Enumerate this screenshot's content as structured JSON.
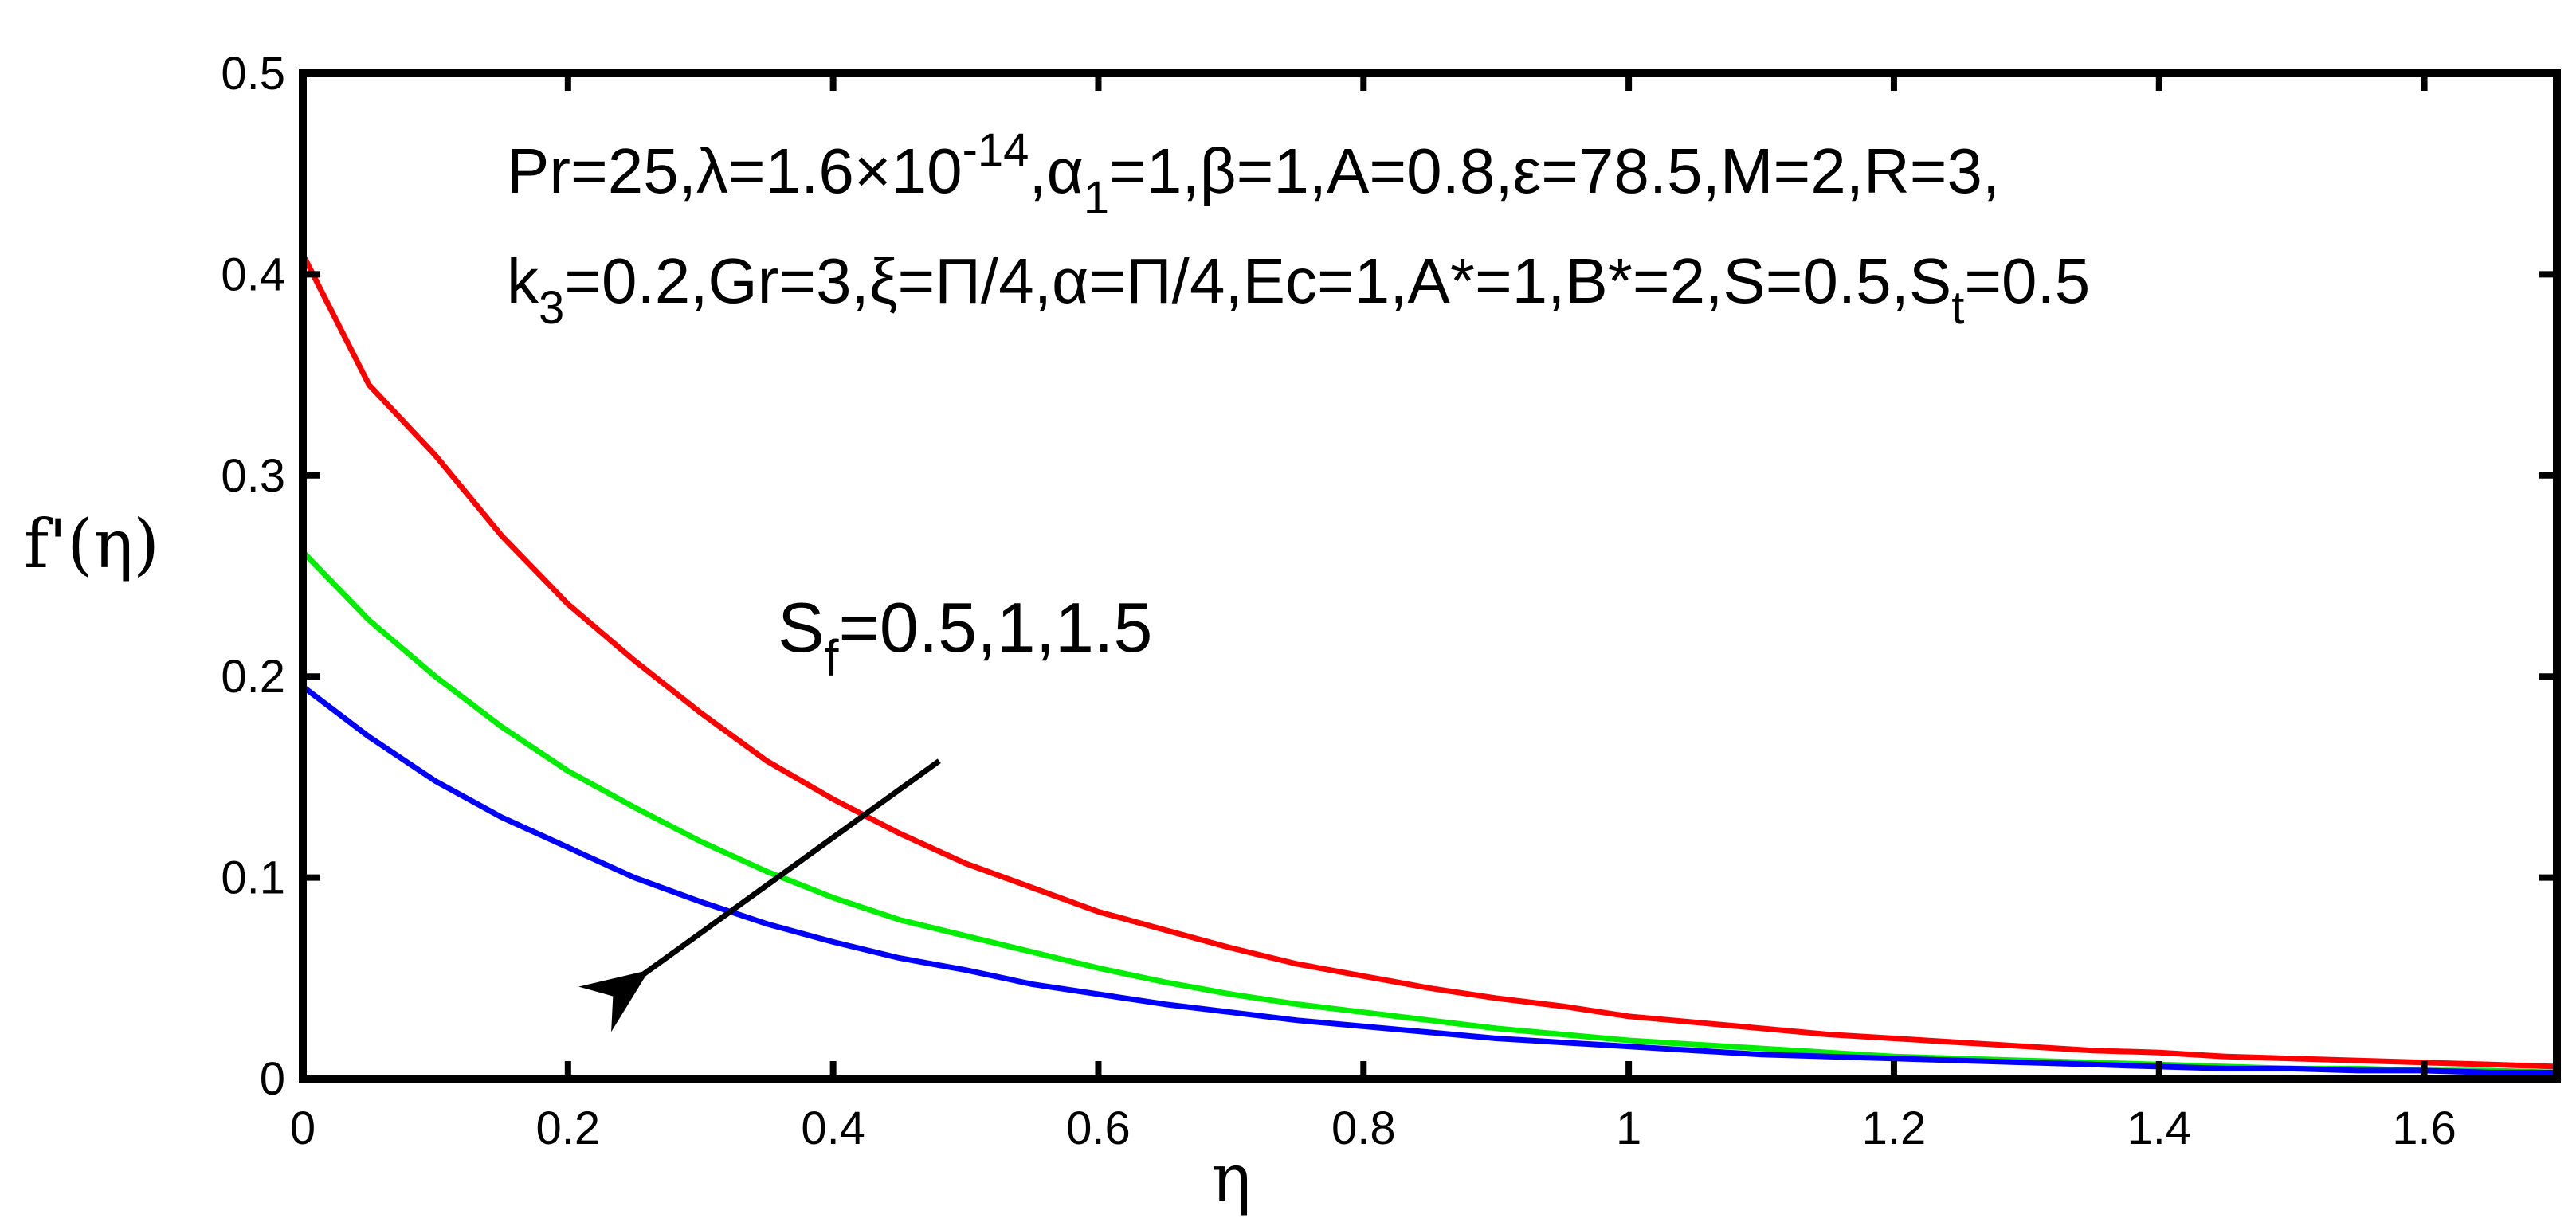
{
  "chart_data": {
    "type": "line",
    "xlabel": "η",
    "ylabel": "f'(η)",
    "xlim": [
      0,
      1.7
    ],
    "ylim": [
      0,
      0.5
    ],
    "xticks": [
      "0",
      "0.2",
      "0.4",
      "0.6",
      "0.8",
      "1",
      "1.2",
      "1.4",
      "1.6"
    ],
    "yticks": [
      "0",
      "0.1",
      "0.2",
      "0.3",
      "0.4",
      "0.5"
    ],
    "x": [
      0,
      0.05,
      0.1,
      0.15,
      0.2,
      0.25,
      0.3,
      0.35,
      0.4,
      0.45,
      0.5,
      0.55,
      0.6,
      0.65,
      0.7,
      0.75,
      0.8,
      0.85,
      0.9,
      0.95,
      1.0,
      1.05,
      1.1,
      1.15,
      1.2,
      1.25,
      1.3,
      1.35,
      1.4,
      1.45,
      1.5,
      1.55,
      1.6,
      1.65,
      1.7
    ],
    "series": [
      {
        "color": "#ff0000",
        "values": [
          0.41,
          0.345,
          0.31,
          0.27,
          0.236,
          0.208,
          0.182,
          0.158,
          0.139,
          0.122,
          0.107,
          0.095,
          0.083,
          0.074,
          0.065,
          0.057,
          0.051,
          0.045,
          0.04,
          0.036,
          0.031,
          0.028,
          0.025,
          0.022,
          0.02,
          0.018,
          0.016,
          0.014,
          0.013,
          0.011,
          0.01,
          0.009,
          0.008,
          0.007,
          0.006
        ]
      },
      {
        "color": "#00ee00",
        "values": [
          0.262,
          0.228,
          0.2,
          0.175,
          0.153,
          0.135,
          0.118,
          0.103,
          0.09,
          0.079,
          0.071,
          0.063,
          0.055,
          0.048,
          0.042,
          0.037,
          0.033,
          0.029,
          0.025,
          0.022,
          0.019,
          0.017,
          0.015,
          0.013,
          0.011,
          0.01,
          0.009,
          0.008,
          0.007,
          0.006,
          0.005,
          0.005,
          0.004,
          0.004,
          0.003
        ]
      },
      {
        "color": "#0000ff",
        "values": [
          0.195,
          0.17,
          0.148,
          0.13,
          0.115,
          0.1,
          0.088,
          0.077,
          0.068,
          0.06,
          0.054,
          0.047,
          0.042,
          0.037,
          0.033,
          0.029,
          0.026,
          0.023,
          0.02,
          0.018,
          0.016,
          0.014,
          0.012,
          0.011,
          0.01,
          0.009,
          0.008,
          0.007,
          0.006,
          0.005,
          0.005,
          0.004,
          0.004,
          0.003,
          0.003
        ]
      }
    ],
    "annotations": {
      "params_line1": "Pr=25,λ=1.6×10-14,α1=1,β=1,A=0.8,ε=78.5,M=2,R=3,",
      "params_line2": "k3=0.2,Gr=3,ξ=Π/4,α=Π/4,Ec=1,A*=1,B*=2,S=0.5,St=0.5",
      "series_label": "Sf=0.5,1,1.5",
      "arrow": {
        "from": [
          0.48,
          0.158
        ],
        "to": [
          0.24,
          0.042
        ],
        "color": "#000000"
      }
    },
    "grid": false,
    "axis_color": "#000000"
  }
}
